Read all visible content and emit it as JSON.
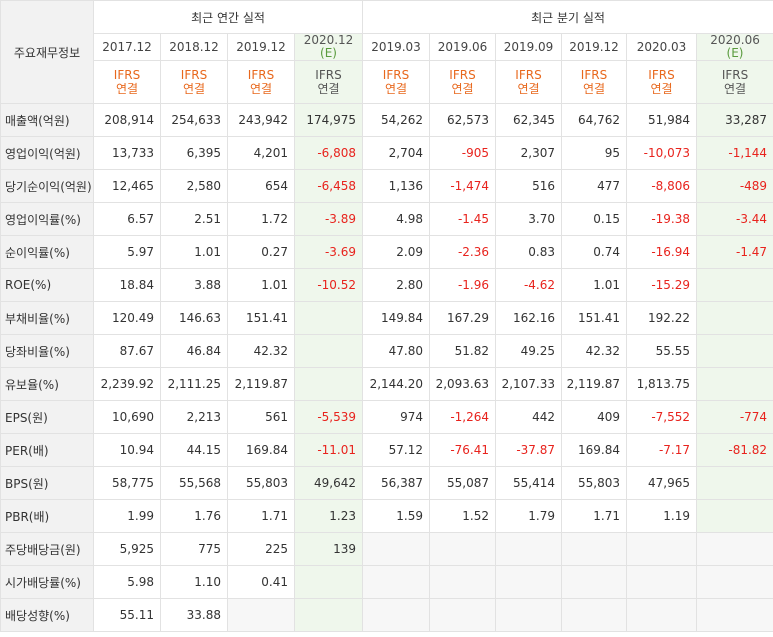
{
  "header": {
    "row_label": "주요재무정보",
    "annual_title": "최근 연간 실적",
    "quarter_title": "최근 분기 실적",
    "type_line1": "IFRS",
    "type_line2": "연결",
    "annual": [
      {
        "date": "2017.12",
        "est": ""
      },
      {
        "date": "2018.12",
        "est": ""
      },
      {
        "date": "2019.12",
        "est": ""
      },
      {
        "date": "2020.12",
        "est": "(E)"
      }
    ],
    "quarter": [
      {
        "date": "2019.03",
        "est": ""
      },
      {
        "date": "2019.06",
        "est": ""
      },
      {
        "date": "2019.09",
        "est": ""
      },
      {
        "date": "2019.12",
        "est": ""
      },
      {
        "date": "2020.03",
        "est": ""
      },
      {
        "date": "2020.06",
        "est": "(E)"
      }
    ]
  },
  "rows": [
    {
      "label": "매출액(억원)",
      "values": [
        "208,914",
        "254,633",
        "243,942",
        "174,975",
        "54,262",
        "62,573",
        "62,345",
        "64,762",
        "51,984",
        "33,287"
      ]
    },
    {
      "label": "영업이익(억원)",
      "values": [
        "13,733",
        "6,395",
        "4,201",
        "-6,808",
        "2,704",
        "-905",
        "2,307",
        "95",
        "-10,073",
        "-1,144"
      ]
    },
    {
      "label": "당기순이익(억원)",
      "values": [
        "12,465",
        "2,580",
        "654",
        "-6,458",
        "1,136",
        "-1,474",
        "516",
        "477",
        "-8,806",
        "-489"
      ]
    },
    {
      "label": "영업이익률(%)",
      "values": [
        "6.57",
        "2.51",
        "1.72",
        "-3.89",
        "4.98",
        "-1.45",
        "3.70",
        "0.15",
        "-19.38",
        "-3.44"
      ]
    },
    {
      "label": "순이익률(%)",
      "values": [
        "5.97",
        "1.01",
        "0.27",
        "-3.69",
        "2.09",
        "-2.36",
        "0.83",
        "0.74",
        "-16.94",
        "-1.47"
      ]
    },
    {
      "label": "ROE(%)",
      "values": [
        "18.84",
        "3.88",
        "1.01",
        "-10.52",
        "2.80",
        "-1.96",
        "-4.62",
        "1.01",
        "-15.29",
        ""
      ]
    },
    {
      "label": "부채비율(%)",
      "values": [
        "120.49",
        "146.63",
        "151.41",
        "",
        "149.84",
        "167.29",
        "162.16",
        "151.41",
        "192.22",
        ""
      ]
    },
    {
      "label": "당좌비율(%)",
      "values": [
        "87.67",
        "46.84",
        "42.32",
        "",
        "47.80",
        "51.82",
        "49.25",
        "42.32",
        "55.55",
        ""
      ]
    },
    {
      "label": "유보율(%)",
      "values": [
        "2,239.92",
        "2,111.25",
        "2,119.87",
        "",
        "2,144.20",
        "2,093.63",
        "2,107.33",
        "2,119.87",
        "1,813.75",
        ""
      ]
    },
    {
      "label": "EPS(원)",
      "values": [
        "10,690",
        "2,213",
        "561",
        "-5,539",
        "974",
        "-1,264",
        "442",
        "409",
        "-7,552",
        "-774"
      ]
    },
    {
      "label": "PER(배)",
      "values": [
        "10.94",
        "44.15",
        "169.84",
        "-11.01",
        "57.12",
        "-76.41",
        "-37.87",
        "169.84",
        "-7.17",
        "-81.82"
      ]
    },
    {
      "label": "BPS(원)",
      "values": [
        "58,775",
        "55,568",
        "55,803",
        "49,642",
        "56,387",
        "55,087",
        "55,414",
        "55,803",
        "47,965",
        ""
      ]
    },
    {
      "label": "PBR(배)",
      "values": [
        "1.99",
        "1.76",
        "1.71",
        "1.23",
        "1.59",
        "1.52",
        "1.79",
        "1.71",
        "1.19",
        ""
      ]
    },
    {
      "label": "주당배당금(원)",
      "values": [
        "5,925",
        "775",
        "225",
        "139",
        "",
        "",
        "",
        "",
        "",
        ""
      ]
    },
    {
      "label": "시가배당률(%)",
      "values": [
        "5.98",
        "1.10",
        "0.41",
        "",
        "",
        "",
        "",
        "",
        "",
        ""
      ]
    },
    {
      "label": "배당성향(%)",
      "values": [
        "55.11",
        "33.88",
        "",
        "",
        "",
        "",
        "",
        "",
        "",
        ""
      ]
    }
  ],
  "colors": {
    "negative": "#e8231d",
    "ifrs": "#e8681d",
    "estimate_bg": "#eff7ec",
    "label_bg": "#f2f2f2"
  }
}
